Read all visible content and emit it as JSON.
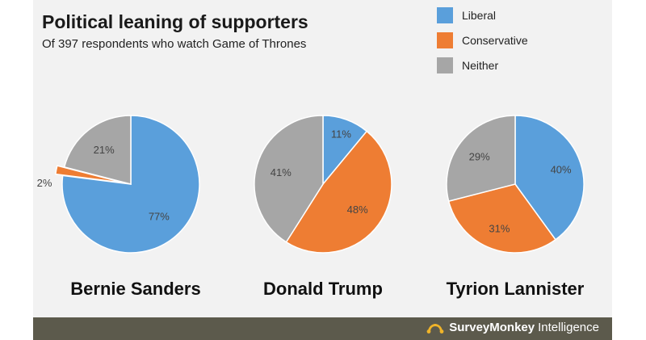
{
  "header": {
    "title": "Political leaning of supporters",
    "subtitle": "Of 397 respondents who watch Game of Thrones"
  },
  "legend": [
    {
      "label": "Liberal",
      "color": "#5a9fdb"
    },
    {
      "label": "Conservative",
      "color": "#ee7d33"
    },
    {
      "label": "Neither",
      "color": "#a6a6a6"
    }
  ],
  "chart_data": [
    {
      "type": "pie",
      "title": "Bernie Sanders",
      "categories": [
        "Liberal",
        "Conservative",
        "Neither"
      ],
      "values": [
        77,
        2,
        21
      ],
      "labels": [
        "77%",
        "2%",
        "21%"
      ]
    },
    {
      "type": "pie",
      "title": "Donald Trump",
      "categories": [
        "Liberal",
        "Conservative",
        "Neither"
      ],
      "values": [
        11,
        48,
        41
      ],
      "labels": [
        "11%",
        "48%",
        "41%"
      ]
    },
    {
      "type": "pie",
      "title": "Tyrion Lannister",
      "categories": [
        "Liberal",
        "Conservative",
        "Neither"
      ],
      "values": [
        40,
        31,
        29
      ],
      "labels": [
        "40%",
        "31%",
        "29%"
      ]
    }
  ],
  "footer": {
    "brand": "SurveyMonkey",
    "suffix": "Intelligence",
    "icon": "surveymonkey-logo-icon"
  }
}
